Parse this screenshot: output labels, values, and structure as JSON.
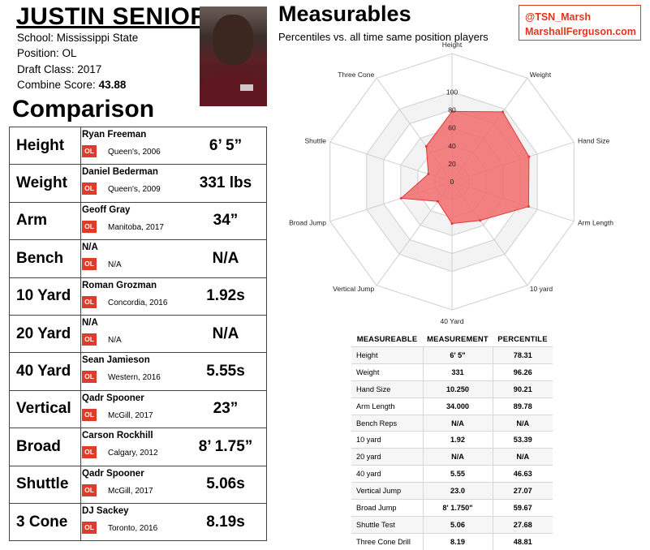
{
  "player": {
    "name": "JUSTIN SENIOR",
    "school_line": "School: Mississippi State",
    "position_line": "Position: OL",
    "draft_line": "Draft Class: 2017",
    "combine_label": "Combine Score:",
    "combine_score": "43.88"
  },
  "comparison": {
    "title": "Comparison",
    "rows": [
      {
        "label": "Height",
        "player": "Ryan Freeman",
        "badge": "OL",
        "school": "Queen's, 2006",
        "value": "6’ 5”"
      },
      {
        "label": "Weight",
        "player": "Daniel Bederman",
        "badge": "OL",
        "school": "Queen's, 2009",
        "value": "331 lbs"
      },
      {
        "label": "Arm",
        "player": "Geoff Gray",
        "badge": "OL",
        "school": "Manitoba, 2017",
        "value": "34”"
      },
      {
        "label": "Bench",
        "player": "N/A",
        "badge": "OL",
        "school": "N/A",
        "value": "N/A"
      },
      {
        "label": "10 Yard",
        "player": "Roman Grozman",
        "badge": "OL",
        "school": "Concordia, 2016",
        "value": "1.92s"
      },
      {
        "label": "20 Yard",
        "player": "N/A",
        "badge": "OL",
        "school": "N/A",
        "value": "N/A"
      },
      {
        "label": "40 Yard",
        "player": "Sean Jamieson",
        "badge": "OL",
        "school": "Western, 2016",
        "value": "5.55s"
      },
      {
        "label": "Vertical",
        "player": "Qadr Spooner",
        "badge": "OL",
        "school": "McGill, 2017",
        "value": "23”"
      },
      {
        "label": "Broad",
        "player": "Carson Rockhill",
        "badge": "OL",
        "school": "Calgary, 2012",
        "value": "8’ 1.75”"
      },
      {
        "label": "Shuttle",
        "player": "Qadr Spooner",
        "badge": "OL",
        "school": "McGill, 2017",
        "value": "5.06s"
      },
      {
        "label": "3 Cone",
        "player": "DJ Sackey",
        "badge": "OL",
        "school": "Toronto, 2016",
        "value": "8.19s"
      }
    ]
  },
  "measurables": {
    "title": "Measurables",
    "subtitle": "Percentiles vs. all time same position players"
  },
  "credit": {
    "handle": "@TSN_Marsh",
    "site": "MarshallFerguson.com",
    "color": "#d8391f"
  },
  "colors": {
    "badge": "#e03a2a",
    "radar_fill": "#f26b6b",
    "radar_stroke": "#e03a3a"
  },
  "chart_data": {
    "type": "radar",
    "axes": [
      "Height",
      "Weight",
      "Hand Size",
      "Arm Length",
      "10 yard",
      "40 Yard",
      "Vertical Jump",
      "Broad Jump",
      "Shuttle",
      "Three Cone"
    ],
    "values": [
      78.31,
      96.26,
      90.21,
      89.78,
      53.39,
      46.63,
      27.07,
      59.67,
      27.68,
      48.81
    ],
    "ticks": [
      "0",
      "20",
      "40",
      "60",
      "80",
      "100"
    ],
    "range": [
      0,
      100
    ],
    "grid": true
  },
  "measure_table": {
    "headers": [
      "MEASUREABLE",
      "MEASUREMENT",
      "PERCENTILE"
    ],
    "rows": [
      [
        "Height",
        "6' 5\"",
        "78.31"
      ],
      [
        "Weight",
        "331",
        "96.26"
      ],
      [
        "Hand Size",
        "10.250",
        "90.21"
      ],
      [
        "Arm Length",
        "34.000",
        "89.78"
      ],
      [
        "Bench Reps",
        "N/A",
        "N/A"
      ],
      [
        "10 yard",
        "1.92",
        "53.39"
      ],
      [
        "20 yard",
        "N/A",
        "N/A"
      ],
      [
        "40 yard",
        "5.55",
        "46.63"
      ],
      [
        "Vertical Jump",
        "23.0",
        "27.07"
      ],
      [
        "Broad Jump",
        "8' 1.750\"",
        "59.67"
      ],
      [
        "Shuttle Test",
        "5.06",
        "27.68"
      ],
      [
        "Three Cone Drill",
        "8.19",
        "48.81"
      ]
    ]
  }
}
